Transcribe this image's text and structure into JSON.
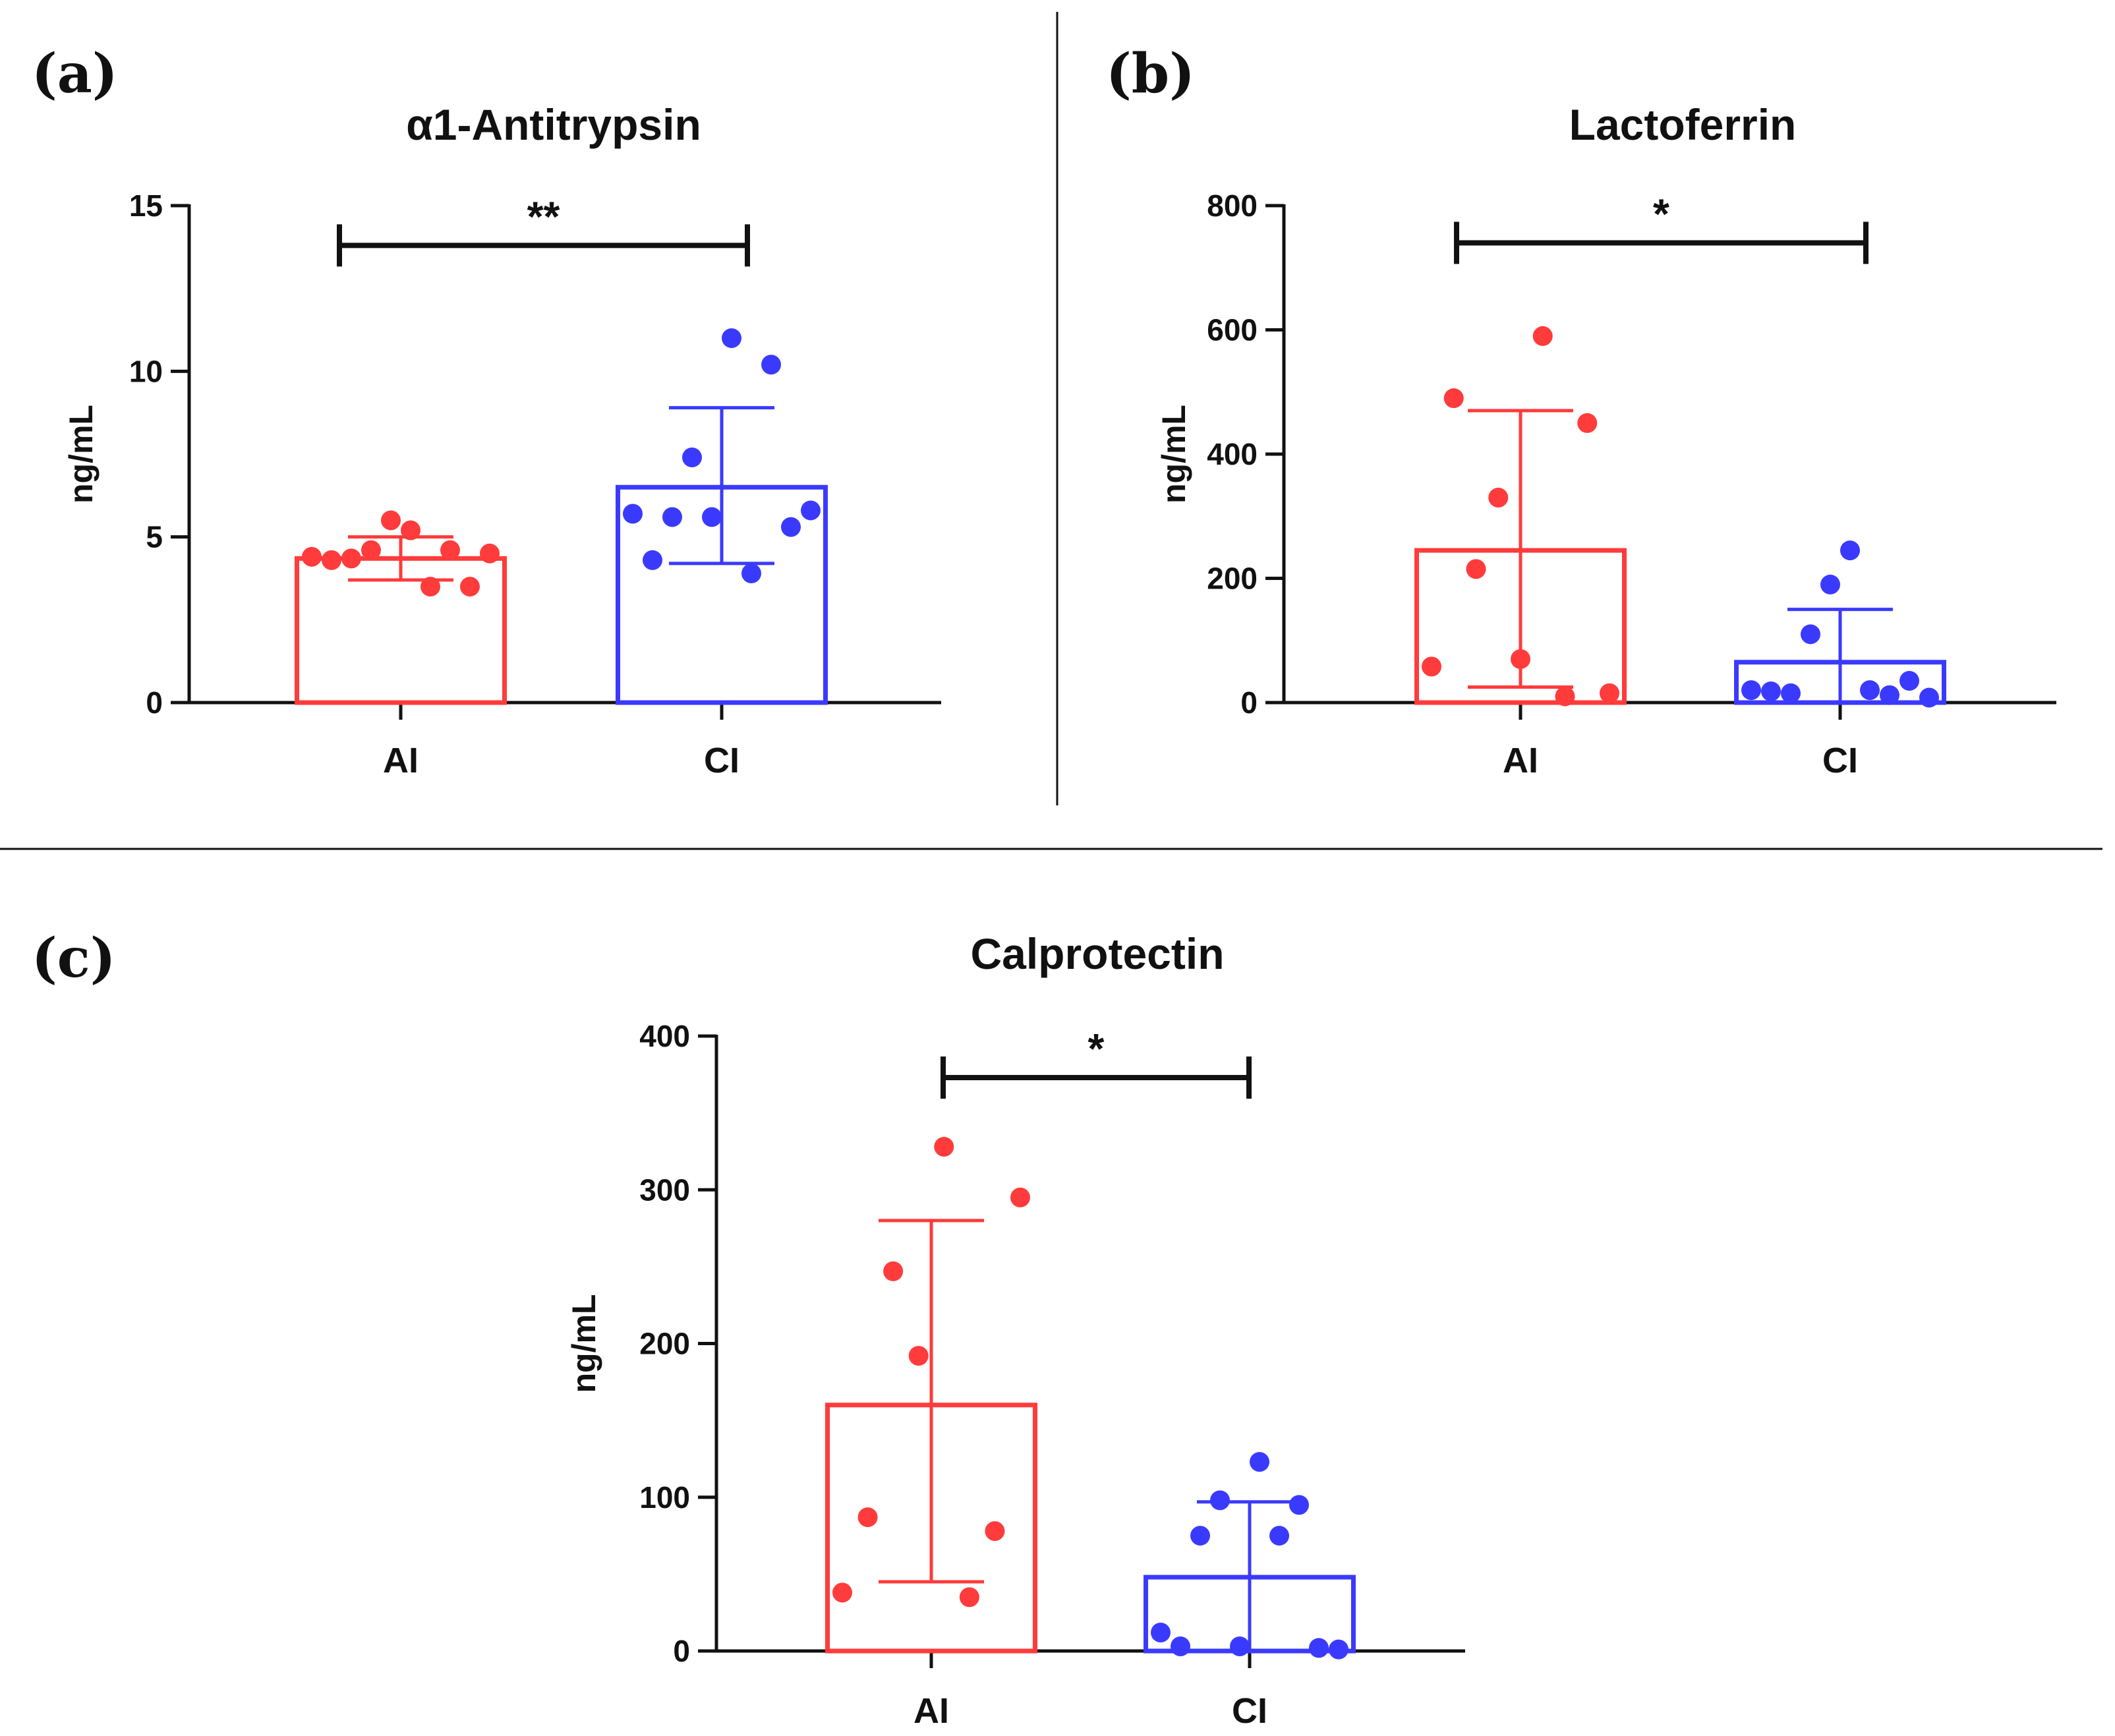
{
  "colors": {
    "AI": "#ff3b3b",
    "CI": "#3a3aff",
    "axis": "#111111",
    "divider": "#111111"
  },
  "chart_data": [
    {
      "panel": "(a)",
      "type": "bar",
      "title": "α1-Antitrypsin",
      "ylabel": "ng/mL",
      "xlabel": "",
      "ylim": [
        0,
        15
      ],
      "yticks": [
        0,
        5,
        10,
        15
      ],
      "categories": [
        "AI",
        "CI"
      ],
      "series": [
        {
          "name": "AI",
          "mean": 4.35,
          "sd_low": 3.7,
          "sd_high": 5.0,
          "points": [
            4.4,
            4.3,
            4.35,
            4.6,
            5.5,
            5.2,
            3.5,
            4.6,
            3.5,
            4.5
          ]
        },
        {
          "name": "CI",
          "mean": 6.5,
          "sd_low": 4.2,
          "sd_high": 8.9,
          "points": [
            5.7,
            4.3,
            5.6,
            7.4,
            5.6,
            11.0,
            3.9,
            10.2,
            5.3,
            5.8
          ]
        }
      ],
      "significance": {
        "label": "**",
        "y": 13.8
      }
    },
    {
      "panel": "(b)",
      "type": "bar",
      "title": "Lactoferrin",
      "ylabel": "ng/mL",
      "xlabel": "",
      "ylim": [
        0,
        800
      ],
      "yticks": [
        0,
        200,
        400,
        600,
        800
      ],
      "categories": [
        "AI",
        "CI"
      ],
      "series": [
        {
          "name": "AI",
          "mean": 245,
          "sd_low": 25,
          "sd_high": 470,
          "points": [
            58,
            490,
            215,
            330,
            70,
            590,
            10,
            450,
            15
          ]
        },
        {
          "name": "CI",
          "mean": 65,
          "sd_low": 0,
          "sd_high": 150,
          "points": [
            20,
            18,
            15,
            110,
            190,
            245,
            20,
            12,
            35,
            8
          ]
        }
      ],
      "significance": {
        "label": "*",
        "y": 740
      }
    },
    {
      "panel": "(c)",
      "type": "bar",
      "title": "Calprotectin",
      "ylabel": "ng/mL",
      "xlabel": "",
      "ylim": [
        0,
        400
      ],
      "yticks": [
        0,
        100,
        200,
        300,
        400
      ],
      "categories": [
        "AI",
        "CI"
      ],
      "series": [
        {
          "name": "AI",
          "mean": 160,
          "sd_low": 45,
          "sd_high": 280,
          "points": [
            38,
            87,
            247,
            192,
            328,
            35,
            78,
            295
          ]
        },
        {
          "name": "CI",
          "mean": 48,
          "sd_low": 0,
          "sd_high": 97,
          "points": [
            12,
            3,
            75,
            98,
            3,
            123,
            75,
            95,
            2,
            1
          ]
        }
      ],
      "significance": {
        "label": "*",
        "y": 373
      }
    }
  ]
}
